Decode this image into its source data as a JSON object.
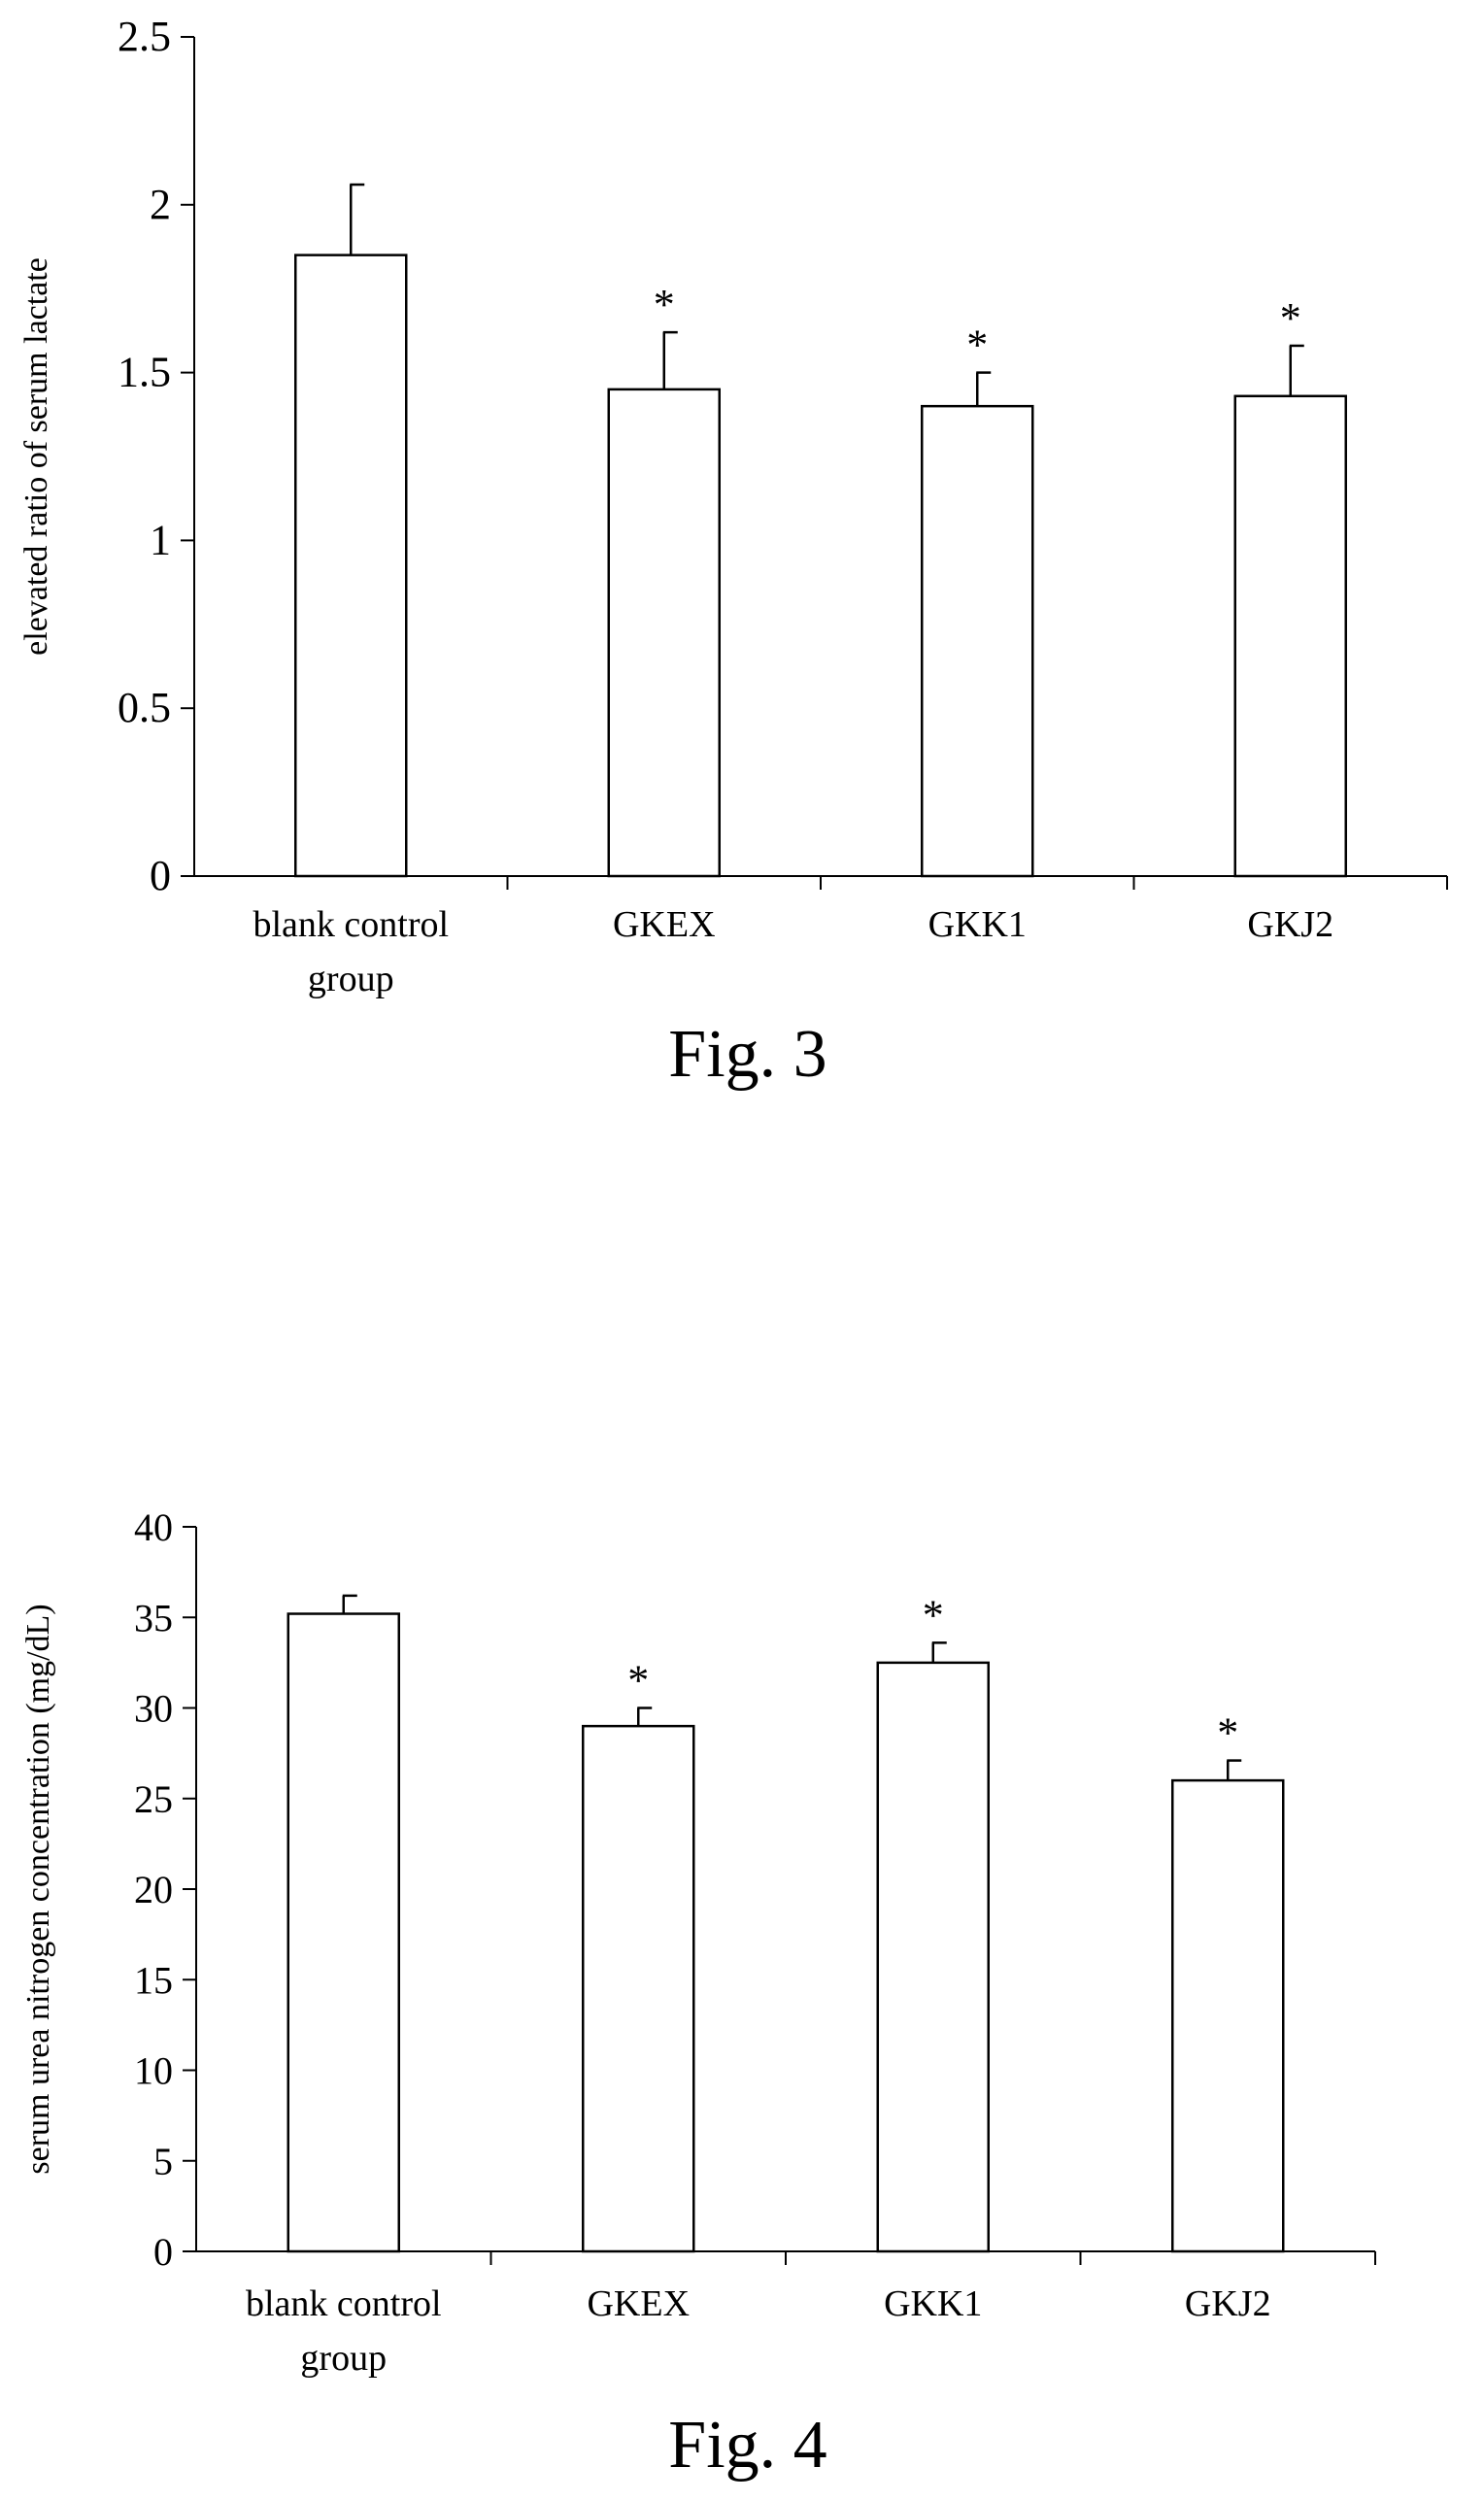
{
  "chart_data": [
    {
      "type": "bar",
      "caption": "Fig. 3",
      "ylabel": "elevated ratio of serum lactate",
      "categories": [
        "blank control group",
        "GKEX",
        "GKK1",
        "GKJ2"
      ],
      "category_lines": [
        [
          "blank control",
          "group"
        ],
        [
          "GKEX"
        ],
        [
          "GKK1"
        ],
        [
          "GKJ2"
        ]
      ],
      "values": [
        1.85,
        1.45,
        1.4,
        1.43
      ],
      "errors": [
        0.21,
        0.17,
        0.1,
        0.15
      ],
      "significance": [
        "",
        "*",
        "*",
        "*"
      ],
      "ylim": [
        0,
        2.5
      ],
      "yticks": [
        0,
        0.5,
        1,
        1.5,
        2,
        2.5
      ],
      "ytick_labels": [
        "0",
        "0.5",
        "1",
        "1.5",
        "2",
        "2.5"
      ],
      "grid": false,
      "bar_fill": "#ffffff",
      "bar_stroke": "#000000"
    },
    {
      "type": "bar",
      "caption": "Fig. 4",
      "ylabel": "serum urea nitrogen concentration (mg/dL)",
      "categories": [
        "blank control group",
        "GKEX",
        "GKK1",
        "GKJ2"
      ],
      "category_lines": [
        [
          "blank control",
          "group"
        ],
        [
          "GKEX"
        ],
        [
          "GKK1"
        ],
        [
          "GKJ2"
        ]
      ],
      "values": [
        35.2,
        29.0,
        32.5,
        26.0
      ],
      "errors": [
        1.0,
        1.0,
        1.1,
        1.1
      ],
      "significance": [
        "",
        "*",
        "*",
        "*"
      ],
      "ylim": [
        0,
        40
      ],
      "yticks": [
        0,
        5,
        10,
        15,
        20,
        25,
        30,
        35,
        40
      ],
      "ytick_labels": [
        "0",
        "5",
        "10",
        "15",
        "20",
        "25",
        "30",
        "35",
        "40"
      ],
      "grid": false,
      "bar_fill": "#ffffff",
      "bar_stroke": "#000000"
    }
  ]
}
